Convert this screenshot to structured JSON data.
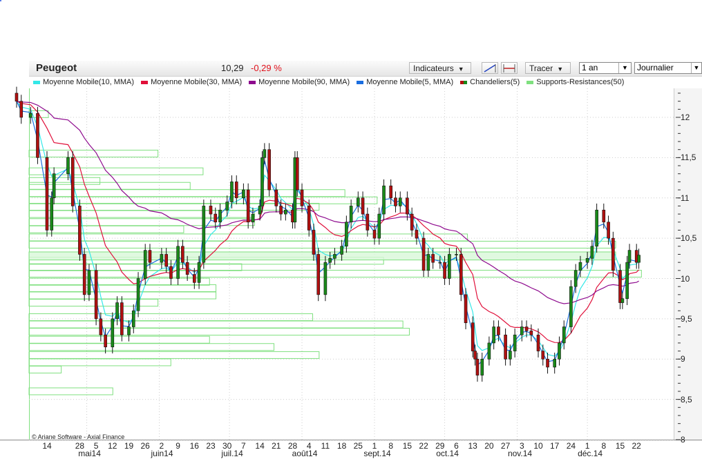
{
  "header": {
    "title": "Peugeot",
    "last_price": "10,29",
    "change": "-0,29 %",
    "indicators_button": "Indicateurs",
    "trace_button": "Tracer",
    "period_select": "1 an",
    "interval_select": "Journalier",
    "line_tool_icon": "trendline-icon",
    "hline_tool_icon": "horizontal-line-icon"
  },
  "legend": [
    {
      "label": "Moyenne Mobile(10, MMA)",
      "color": "#33e8e8"
    },
    {
      "label": "Moyenne Mobile(30, MMA)",
      "color": "#e0103a"
    },
    {
      "label": "Moyenne Mobile(90, MMA)",
      "color": "#8e0a8e"
    },
    {
      "label": "Moyenne Mobile(5, MMA)",
      "color": "#1a6ee0"
    },
    {
      "label": "Chandeliers(5)",
      "color": "#b01010",
      "color2": "#1a8a1a"
    },
    {
      "label": "Supports-Resistances(50)",
      "color": "#7fe07f"
    }
  ],
  "copyright": "© Ariane Software - Axial Finance",
  "chart_data": {
    "type": "candlestick",
    "ylim": [
      8,
      12.3
    ],
    "y_ticks": [
      "12",
      "11,5",
      "11",
      "10,5",
      "10",
      "9,5",
      "9",
      "8,5",
      "8"
    ],
    "y_tick_values": [
      12,
      11.5,
      11,
      10.5,
      10,
      9.5,
      9,
      8.5,
      8
    ],
    "x_day_ticks": [
      {
        "date": "2014-04-14",
        "label": "14"
      },
      {
        "date": "2014-04-28",
        "label": "28"
      },
      {
        "date": "2014-05-05",
        "label": "5"
      },
      {
        "date": "2014-05-12",
        "label": "12"
      },
      {
        "date": "2014-05-19",
        "label": "19"
      },
      {
        "date": "2014-05-26",
        "label": "26"
      },
      {
        "date": "2014-06-02",
        "label": "2"
      },
      {
        "date": "2014-06-09",
        "label": "9"
      },
      {
        "date": "2014-06-16",
        "label": "16"
      },
      {
        "date": "2014-06-23",
        "label": "23"
      },
      {
        "date": "2014-06-30",
        "label": "30"
      },
      {
        "date": "2014-07-07",
        "label": "7"
      },
      {
        "date": "2014-07-14",
        "label": "14"
      },
      {
        "date": "2014-07-21",
        "label": "21"
      },
      {
        "date": "2014-07-28",
        "label": "28"
      },
      {
        "date": "2014-08-04",
        "label": "4"
      },
      {
        "date": "2014-08-11",
        "label": "11"
      },
      {
        "date": "2014-08-18",
        "label": "18"
      },
      {
        "date": "2014-08-25",
        "label": "25"
      },
      {
        "date": "2014-09-01",
        "label": "1"
      },
      {
        "date": "2014-09-08",
        "label": "8"
      },
      {
        "date": "2014-09-15",
        "label": "15"
      },
      {
        "date": "2014-09-22",
        "label": "22"
      },
      {
        "date": "2014-09-29",
        "label": "29"
      },
      {
        "date": "2014-10-06",
        "label": "6"
      },
      {
        "date": "2014-10-13",
        "label": "13"
      },
      {
        "date": "2014-10-20",
        "label": "20"
      },
      {
        "date": "2014-10-27",
        "label": "27"
      },
      {
        "date": "2014-11-03",
        "label": "3"
      },
      {
        "date": "2014-11-10",
        "label": "10"
      },
      {
        "date": "2014-11-17",
        "label": "17"
      },
      {
        "date": "2014-11-24",
        "label": "24"
      },
      {
        "date": "2014-12-01",
        "label": "1"
      },
      {
        "date": "2014-12-08",
        "label": "8"
      },
      {
        "date": "2014-12-15",
        "label": "15"
      },
      {
        "date": "2014-12-22",
        "label": "22"
      }
    ],
    "x_month_ticks": [
      {
        "date": "2014-05-01",
        "label": "mai14"
      },
      {
        "date": "2014-06-01",
        "label": "juin14"
      },
      {
        "date": "2014-07-01",
        "label": "juil.14"
      },
      {
        "date": "2014-08-01",
        "label": "août14"
      },
      {
        "date": "2014-09-01",
        "label": "sept.14"
      },
      {
        "date": "2014-10-01",
        "label": "oct.14"
      },
      {
        "date": "2014-11-01",
        "label": "nov.14"
      },
      {
        "date": "2014-12-01",
        "label": "déc.14"
      }
    ],
    "grid": true,
    "moving_averages": [
      {
        "name": "Moyenne Mobile(10, MMA)",
        "period": 10,
        "color": "#33e8e8"
      },
      {
        "name": "Moyenne Mobile(30, MMA)",
        "period": 30,
        "color": "#e0103a"
      },
      {
        "name": "Moyenne Mobile(90, MMA)",
        "period": 90,
        "color": "#8e0a8e"
      },
      {
        "name": "Moyenne Mobile(5, MMA)",
        "period": 5,
        "color": "#1a6ee0"
      }
    ],
    "closes": [
      [
        "2014-04-01",
        12.2
      ],
      [
        "2014-04-03",
        12.0
      ],
      [
        "2014-04-07",
        12.05
      ],
      [
        "2014-04-10",
        11.5
      ],
      [
        "2014-04-14",
        10.6
      ],
      [
        "2014-04-16",
        11.0
      ],
      [
        "2014-04-17",
        11.3
      ],
      [
        "2014-04-23",
        11.5
      ],
      [
        "2014-04-25",
        10.9
      ],
      [
        "2014-04-28",
        10.3
      ],
      [
        "2014-04-30",
        9.8
      ],
      [
        "2014-05-02",
        10.1
      ],
      [
        "2014-05-05",
        9.5
      ],
      [
        "2014-05-07",
        9.3
      ],
      [
        "2014-05-09",
        9.15
      ],
      [
        "2014-05-12",
        9.5
      ],
      [
        "2014-05-14",
        9.7
      ],
      [
        "2014-05-16",
        9.3
      ],
      [
        "2014-05-19",
        9.4
      ],
      [
        "2014-05-21",
        9.6
      ],
      [
        "2014-05-23",
        10.0
      ],
      [
        "2014-05-26",
        10.35
      ],
      [
        "2014-05-28",
        10.2
      ],
      [
        "2014-06-02",
        10.3
      ],
      [
        "2014-06-04",
        10.15
      ],
      [
        "2014-06-06",
        10.0
      ],
      [
        "2014-06-09",
        10.4
      ],
      [
        "2014-06-11",
        10.2
      ],
      [
        "2014-06-13",
        10.05
      ],
      [
        "2014-06-16",
        9.95
      ],
      [
        "2014-06-18",
        10.2
      ],
      [
        "2014-06-20",
        10.9
      ],
      [
        "2014-06-23",
        10.8
      ],
      [
        "2014-06-25",
        10.7
      ],
      [
        "2014-06-27",
        10.85
      ],
      [
        "2014-06-30",
        10.95
      ],
      [
        "2014-07-02",
        11.2
      ],
      [
        "2014-07-04",
        11.0
      ],
      [
        "2014-07-07",
        11.1
      ],
      [
        "2014-07-09",
        10.7
      ],
      [
        "2014-07-11",
        10.8
      ],
      [
        "2014-07-14",
        10.9
      ],
      [
        "2014-07-15",
        11.5
      ],
      [
        "2014-07-16",
        11.6
      ],
      [
        "2014-07-18",
        11.1
      ],
      [
        "2014-07-21",
        10.9
      ],
      [
        "2014-07-23",
        10.8
      ],
      [
        "2014-07-25",
        10.85
      ],
      [
        "2014-07-28",
        10.7
      ],
      [
        "2014-07-29",
        11.5
      ],
      [
        "2014-07-30",
        11.1
      ],
      [
        "2014-08-01",
        10.9
      ],
      [
        "2014-08-04",
        10.6
      ],
      [
        "2014-08-06",
        10.3
      ],
      [
        "2014-08-08",
        9.8
      ],
      [
        "2014-08-11",
        10.2
      ],
      [
        "2014-08-13",
        10.25
      ],
      [
        "2014-08-15",
        10.3
      ],
      [
        "2014-08-18",
        10.4
      ],
      [
        "2014-08-20",
        10.7
      ],
      [
        "2014-08-22",
        10.9
      ],
      [
        "2014-08-25",
        11.0
      ],
      [
        "2014-08-27",
        10.8
      ],
      [
        "2014-08-29",
        10.6
      ],
      [
        "2014-09-01",
        10.5
      ],
      [
        "2014-09-03",
        10.8
      ],
      [
        "2014-09-05",
        11.15
      ],
      [
        "2014-09-08",
        11.0
      ],
      [
        "2014-09-10",
        10.9
      ],
      [
        "2014-09-12",
        11.0
      ],
      [
        "2014-09-15",
        10.8
      ],
      [
        "2014-09-17",
        10.6
      ],
      [
        "2014-09-19",
        10.5
      ],
      [
        "2014-09-22",
        10.1
      ],
      [
        "2014-09-24",
        10.3
      ],
      [
        "2014-09-26",
        10.2
      ],
      [
        "2014-09-29",
        10.2
      ],
      [
        "2014-10-01",
        10.0
      ],
      [
        "2014-10-03",
        10.3
      ],
      [
        "2014-10-06",
        10.3
      ],
      [
        "2014-10-08",
        9.8
      ],
      [
        "2014-10-10",
        9.45
      ],
      [
        "2014-10-13",
        9.1
      ],
      [
        "2014-10-14",
        9.0
      ],
      [
        "2014-10-15",
        8.8
      ],
      [
        "2014-10-17",
        9.0
      ],
      [
        "2014-10-20",
        9.2
      ],
      [
        "2014-10-22",
        9.4
      ],
      [
        "2014-10-24",
        9.3
      ],
      [
        "2014-10-27",
        9.0
      ],
      [
        "2014-10-29",
        9.1
      ],
      [
        "2014-10-31",
        9.3
      ],
      [
        "2014-11-03",
        9.4
      ],
      [
        "2014-11-05",
        9.35
      ],
      [
        "2014-11-07",
        9.3
      ],
      [
        "2014-11-10",
        9.1
      ],
      [
        "2014-11-12",
        9.0
      ],
      [
        "2014-11-14",
        8.9
      ],
      [
        "2014-11-17",
        9.0
      ],
      [
        "2014-11-19",
        9.2
      ],
      [
        "2014-11-21",
        9.4
      ],
      [
        "2014-11-24",
        9.9
      ],
      [
        "2014-11-26",
        10.1
      ],
      [
        "2014-11-28",
        10.2
      ],
      [
        "2014-12-01",
        10.25
      ],
      [
        "2014-12-03",
        10.4
      ],
      [
        "2014-12-05",
        10.85
      ],
      [
        "2014-12-08",
        10.7
      ],
      [
        "2014-12-10",
        10.5
      ],
      [
        "2014-12-12",
        10.1
      ],
      [
        "2014-12-15",
        9.7
      ],
      [
        "2014-12-16",
        9.75
      ],
      [
        "2014-12-18",
        10.2
      ],
      [
        "2014-12-19",
        10.35
      ],
      [
        "2014-12-22",
        10.2
      ],
      [
        "2014-12-23",
        10.29
      ]
    ],
    "support_resistance": [
      [
        12.04,
        0.03
      ],
      [
        11.55,
        0.2
      ],
      [
        11.33,
        0.27
      ],
      [
        11.21,
        0.11
      ],
      [
        11.15,
        0.25
      ],
      [
        11.06,
        0.49
      ],
      [
        10.97,
        0.54
      ],
      [
        10.89,
        0.45
      ],
      [
        10.8,
        0.35
      ],
      [
        10.7,
        0.35
      ],
      [
        10.61,
        0.24
      ],
      [
        10.51,
        0.68
      ],
      [
        10.42,
        0.91
      ],
      [
        10.22,
        0.55
      ],
      [
        10.14,
        0.33
      ],
      [
        10.06,
        0.95
      ],
      [
        9.96,
        0.28
      ],
      [
        9.88,
        0.29
      ],
      [
        9.79,
        0.29
      ],
      [
        9.7,
        0.2
      ],
      [
        9.52,
        0.44
      ],
      [
        9.43,
        0.58
      ],
      [
        9.34,
        0.59
      ],
      [
        9.24,
        0.28
      ],
      [
        9.15,
        0.38
      ],
      [
        9.05,
        0.45
      ],
      [
        8.96,
        0.22
      ],
      [
        8.87,
        0.05
      ],
      [
        8.6,
        0.13
      ]
    ],
    "highlighted_zone": [
      10.23,
      10.33
    ]
  }
}
